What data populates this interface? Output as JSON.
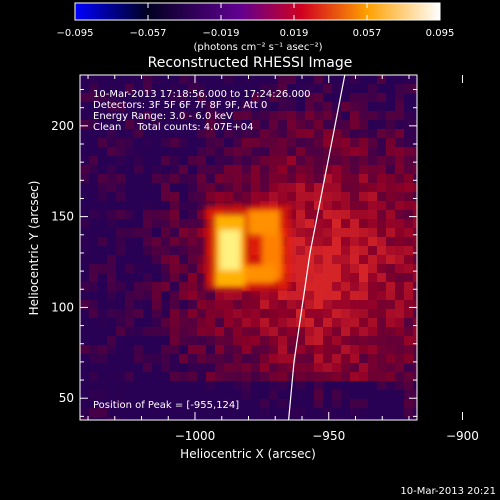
{
  "colorbar": {
    "ticks": [
      "-0.095",
      "-0.057",
      "-0.019",
      "0.019",
      "0.057",
      "0.095"
    ],
    "unit_label": "(photons cm⁻² s⁻¹ asec⁻²)"
  },
  "chart_data": {
    "type": "heatmap",
    "title": "Reconstructed RHESSI Image",
    "xlabel": "Heliocentric X (arcsec)",
    "ylabel": "Heliocentric Y (arcsec)",
    "xlim": [
      -1043,
      -917
    ],
    "ylim": [
      38,
      228
    ],
    "x_ticks": [
      {
        "value": -1000,
        "label": "−1000"
      },
      {
        "value": -950,
        "label": "−950"
      },
      {
        "value": -900,
        "label": "−900"
      }
    ],
    "y_ticks": [
      {
        "value": 50,
        "label": "50"
      },
      {
        "value": 100,
        "label": "100"
      },
      {
        "value": 150,
        "label": "150"
      },
      {
        "value": 200,
        "label": "200"
      }
    ],
    "colormap": [
      "#0000ff",
      "#000000",
      "#600090",
      "#ff0000",
      "#ffff00",
      "#ffffff"
    ],
    "value_range": [
      -0.095,
      0.095
    ],
    "info_lines": [
      "10-Mar-2013 17:18:56.000 to 17:24:26.000",
      "Detectors: 3F 5F 6F 7F 8F 9F, Att 0",
      "Energy Range: 3.0 - 6.0 keV",
      "Clean     Total counts: 4.07E+04"
    ],
    "peak_label": "Position of Peak = [-955,124]",
    "peak": [
      -955,
      124
    ],
    "limb_arc": [
      [
        -965,
        38
      ],
      [
        -963,
        70
      ],
      [
        -960,
        100
      ],
      [
        -957,
        130
      ],
      [
        -953,
        160
      ],
      [
        -949,
        190
      ],
      [
        -944,
        228
      ]
    ]
  },
  "footer": {
    "timestamp": "10-Mar-2013 20:21"
  }
}
